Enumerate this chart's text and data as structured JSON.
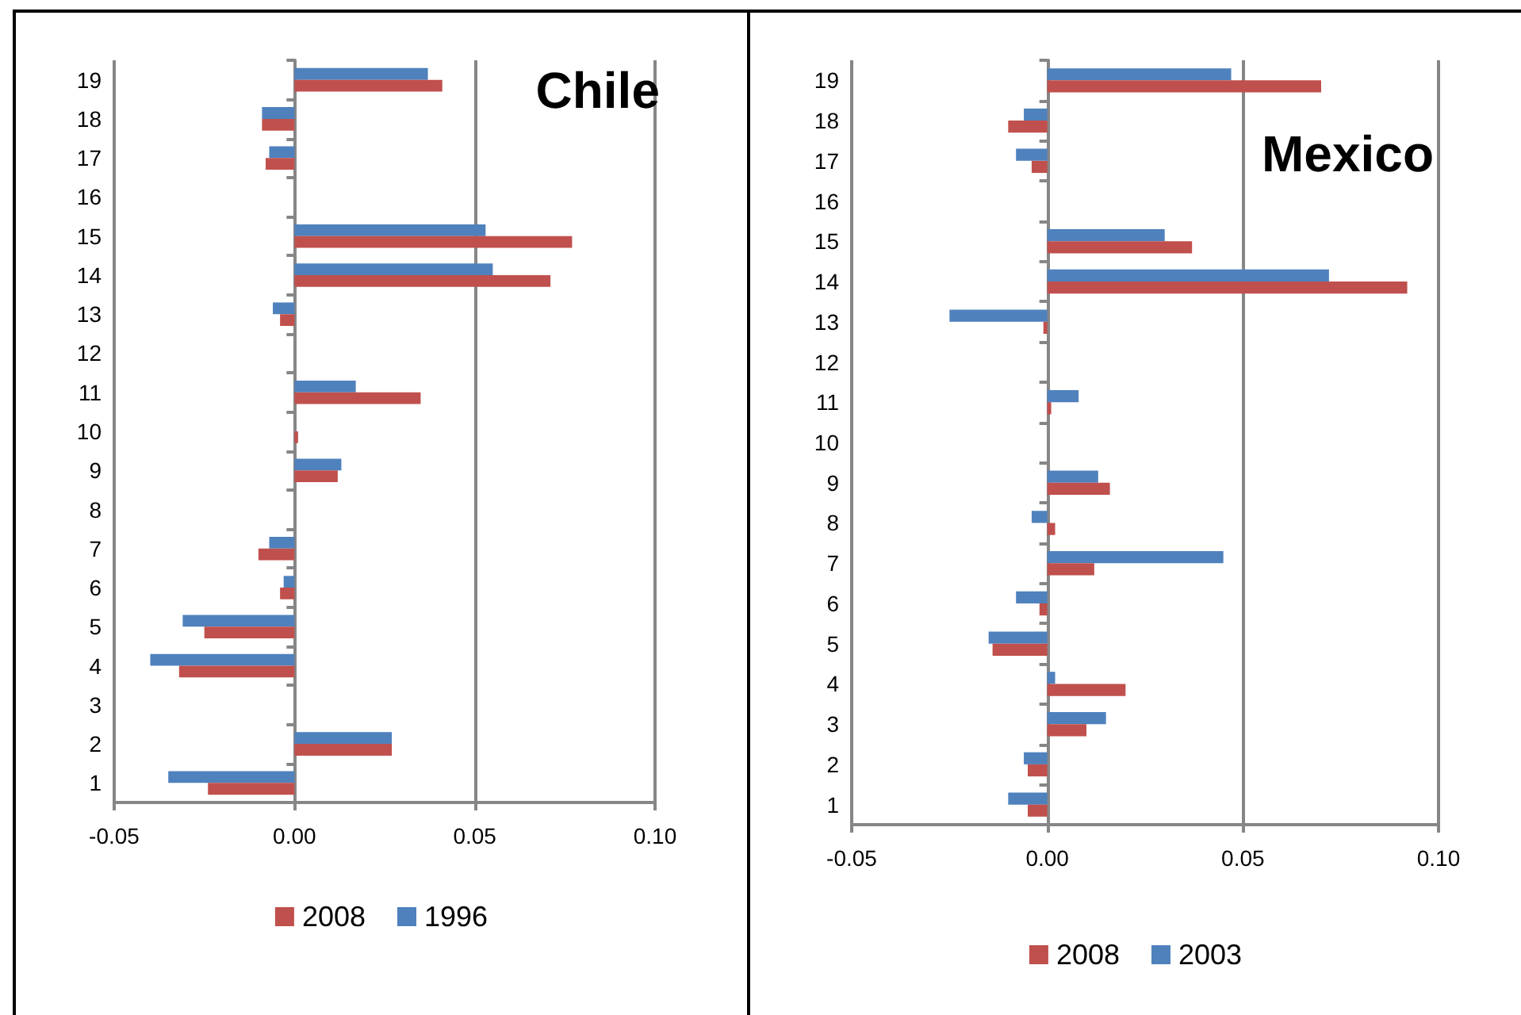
{
  "chart_data": [
    {
      "type": "bar",
      "orientation": "horizontal",
      "title": "Chile",
      "categories": [
        "19",
        "18",
        "17",
        "16",
        "15",
        "14",
        "13",
        "12",
        "11",
        "10",
        "9",
        "8",
        "7",
        "6",
        "5",
        "4",
        "3",
        "2",
        "1"
      ],
      "series": [
        {
          "name": "2008",
          "color": "#c0504d",
          "values": [
            0.041,
            -0.009,
            -0.008,
            0,
            0.077,
            0.071,
            -0.004,
            0,
            0.035,
            0.001,
            0.012,
            0,
            -0.01,
            -0.004,
            -0.025,
            -0.032,
            0,
            0.027,
            -0.024
          ]
        },
        {
          "name": "1996",
          "color": "#4f81bd",
          "values": [
            0.037,
            -0.009,
            -0.007,
            0,
            0.053,
            0.055,
            -0.006,
            0,
            0.017,
            0,
            0.013,
            0,
            -0.007,
            -0.003,
            -0.031,
            -0.04,
            0,
            0.027,
            -0.035
          ]
        }
      ],
      "xlim": [
        -0.05,
        0.1
      ],
      "xticks": [
        {
          "value": -0.05,
          "label": "-0.05"
        },
        {
          "value": 0,
          "label": "0.00"
        },
        {
          "value": 0.05,
          "label": "0.05"
        },
        {
          "value": 0.1,
          "label": "0.10"
        }
      ],
      "grid": "x",
      "legend": "bottom"
    },
    {
      "type": "bar",
      "orientation": "horizontal",
      "title": "Mexico",
      "categories": [
        "19",
        "18",
        "17",
        "16",
        "15",
        "14",
        "13",
        "12",
        "11",
        "10",
        "9",
        "8",
        "7",
        "6",
        "5",
        "4",
        "3",
        "2",
        "1"
      ],
      "series": [
        {
          "name": "2008",
          "color": "#c0504d",
          "values": [
            0.07,
            -0.01,
            -0.004,
            0,
            0.037,
            0.092,
            -0.001,
            0,
            0.001,
            0,
            0.016,
            0.002,
            0.012,
            -0.002,
            -0.014,
            0.02,
            0.01,
            -0.005,
            -0.005
          ]
        },
        {
          "name": "2003",
          "color": "#4f81bd",
          "values": [
            0.047,
            -0.006,
            -0.008,
            0,
            0.03,
            0.072,
            -0.025,
            0,
            0.008,
            0,
            0.013,
            -0.004,
            0.045,
            -0.008,
            -0.015,
            0.002,
            0.015,
            -0.006,
            -0.01
          ]
        }
      ],
      "xlim": [
        -0.05,
        0.1
      ],
      "xticks": [
        {
          "value": -0.05,
          "label": "-0.05"
        },
        {
          "value": 0,
          "label": "0.00"
        },
        {
          "value": 0.05,
          "label": "0.05"
        },
        {
          "value": 0.1,
          "label": "0.10"
        }
      ],
      "grid": "x",
      "legend": "bottom"
    }
  ]
}
